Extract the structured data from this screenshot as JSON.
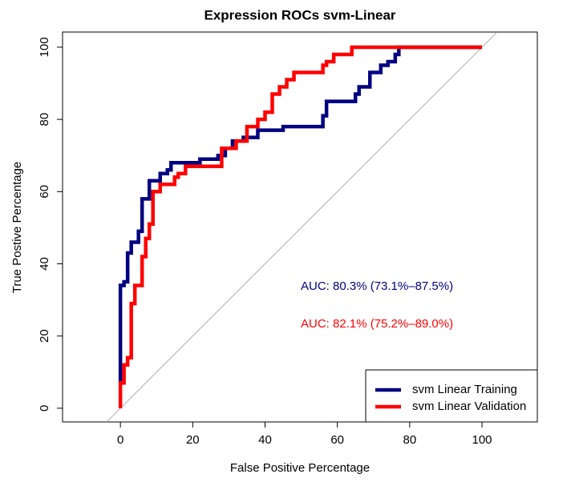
{
  "chart_data": {
    "type": "line",
    "title": "Expression ROCs svm-Linear",
    "x_label": "False Positive Percentage",
    "y_label": "True Postive Percentage",
    "xlim": [
      -16,
      115.3
    ],
    "ylim": [
      -3.8,
      104.2
    ],
    "xticks": [
      0,
      20,
      40,
      60,
      80,
      100
    ],
    "yticks": [
      0,
      20,
      40,
      60,
      80,
      100
    ],
    "annotations": [
      "AUC: 80.3% (73.1%–87.5%)",
      "AUC: 82.1% (75.2%–89.0%)"
    ],
    "legend": "bottom-right",
    "series": [
      {
        "name": "svm Linear Training",
        "color": "#000080",
        "x": [
          0,
          0,
          1,
          1,
          2,
          2,
          3,
          3,
          5,
          5,
          6,
          6,
          8,
          8,
          11,
          11,
          13,
          13,
          14,
          14,
          22,
          22,
          27,
          27,
          29,
          29,
          31,
          31,
          34,
          34,
          38,
          38,
          45,
          45,
          56,
          56,
          57,
          57,
          65,
          65,
          66,
          66,
          69,
          69,
          72,
          72,
          74,
          74,
          76,
          76,
          77,
          77,
          100
        ],
        "values": [
          7,
          34,
          34,
          35,
          35,
          43,
          43,
          46,
          46,
          49,
          49,
          58,
          58,
          63,
          63,
          65,
          65,
          66,
          66,
          68,
          68,
          69,
          69,
          70,
          70,
          72,
          72,
          74,
          74,
          75,
          75,
          77,
          77,
          78,
          78,
          81,
          81,
          85,
          85,
          87,
          87,
          89,
          89,
          93,
          93,
          95,
          95,
          96,
          96,
          98,
          98,
          100,
          100
        ]
      },
      {
        "name": "svm Linear Validation",
        "color": "#ff0000",
        "x": [
          0,
          0,
          1,
          1,
          2,
          2,
          3,
          3,
          4,
          4,
          6,
          6,
          7,
          7,
          8,
          8,
          9,
          9,
          11,
          11,
          15,
          15,
          16,
          16,
          18,
          18,
          28,
          28,
          32,
          32,
          35,
          35,
          38,
          38,
          40,
          40,
          42,
          42,
          44,
          44,
          46,
          46,
          48,
          48,
          56,
          56,
          57,
          57,
          59,
          59,
          64,
          64,
          100
        ],
        "values": [
          0,
          7,
          7,
          12,
          12,
          14,
          14,
          29,
          29,
          34,
          34,
          42,
          42,
          47,
          47,
          51,
          51,
          60,
          60,
          62,
          62,
          64,
          64,
          65,
          65,
          67,
          67,
          72,
          72,
          74,
          74,
          78,
          78,
          80,
          80,
          82,
          82,
          87,
          87,
          89,
          89,
          91,
          91,
          93,
          93,
          95,
          95,
          96,
          96,
          98,
          98,
          100,
          100
        ]
      }
    ]
  }
}
